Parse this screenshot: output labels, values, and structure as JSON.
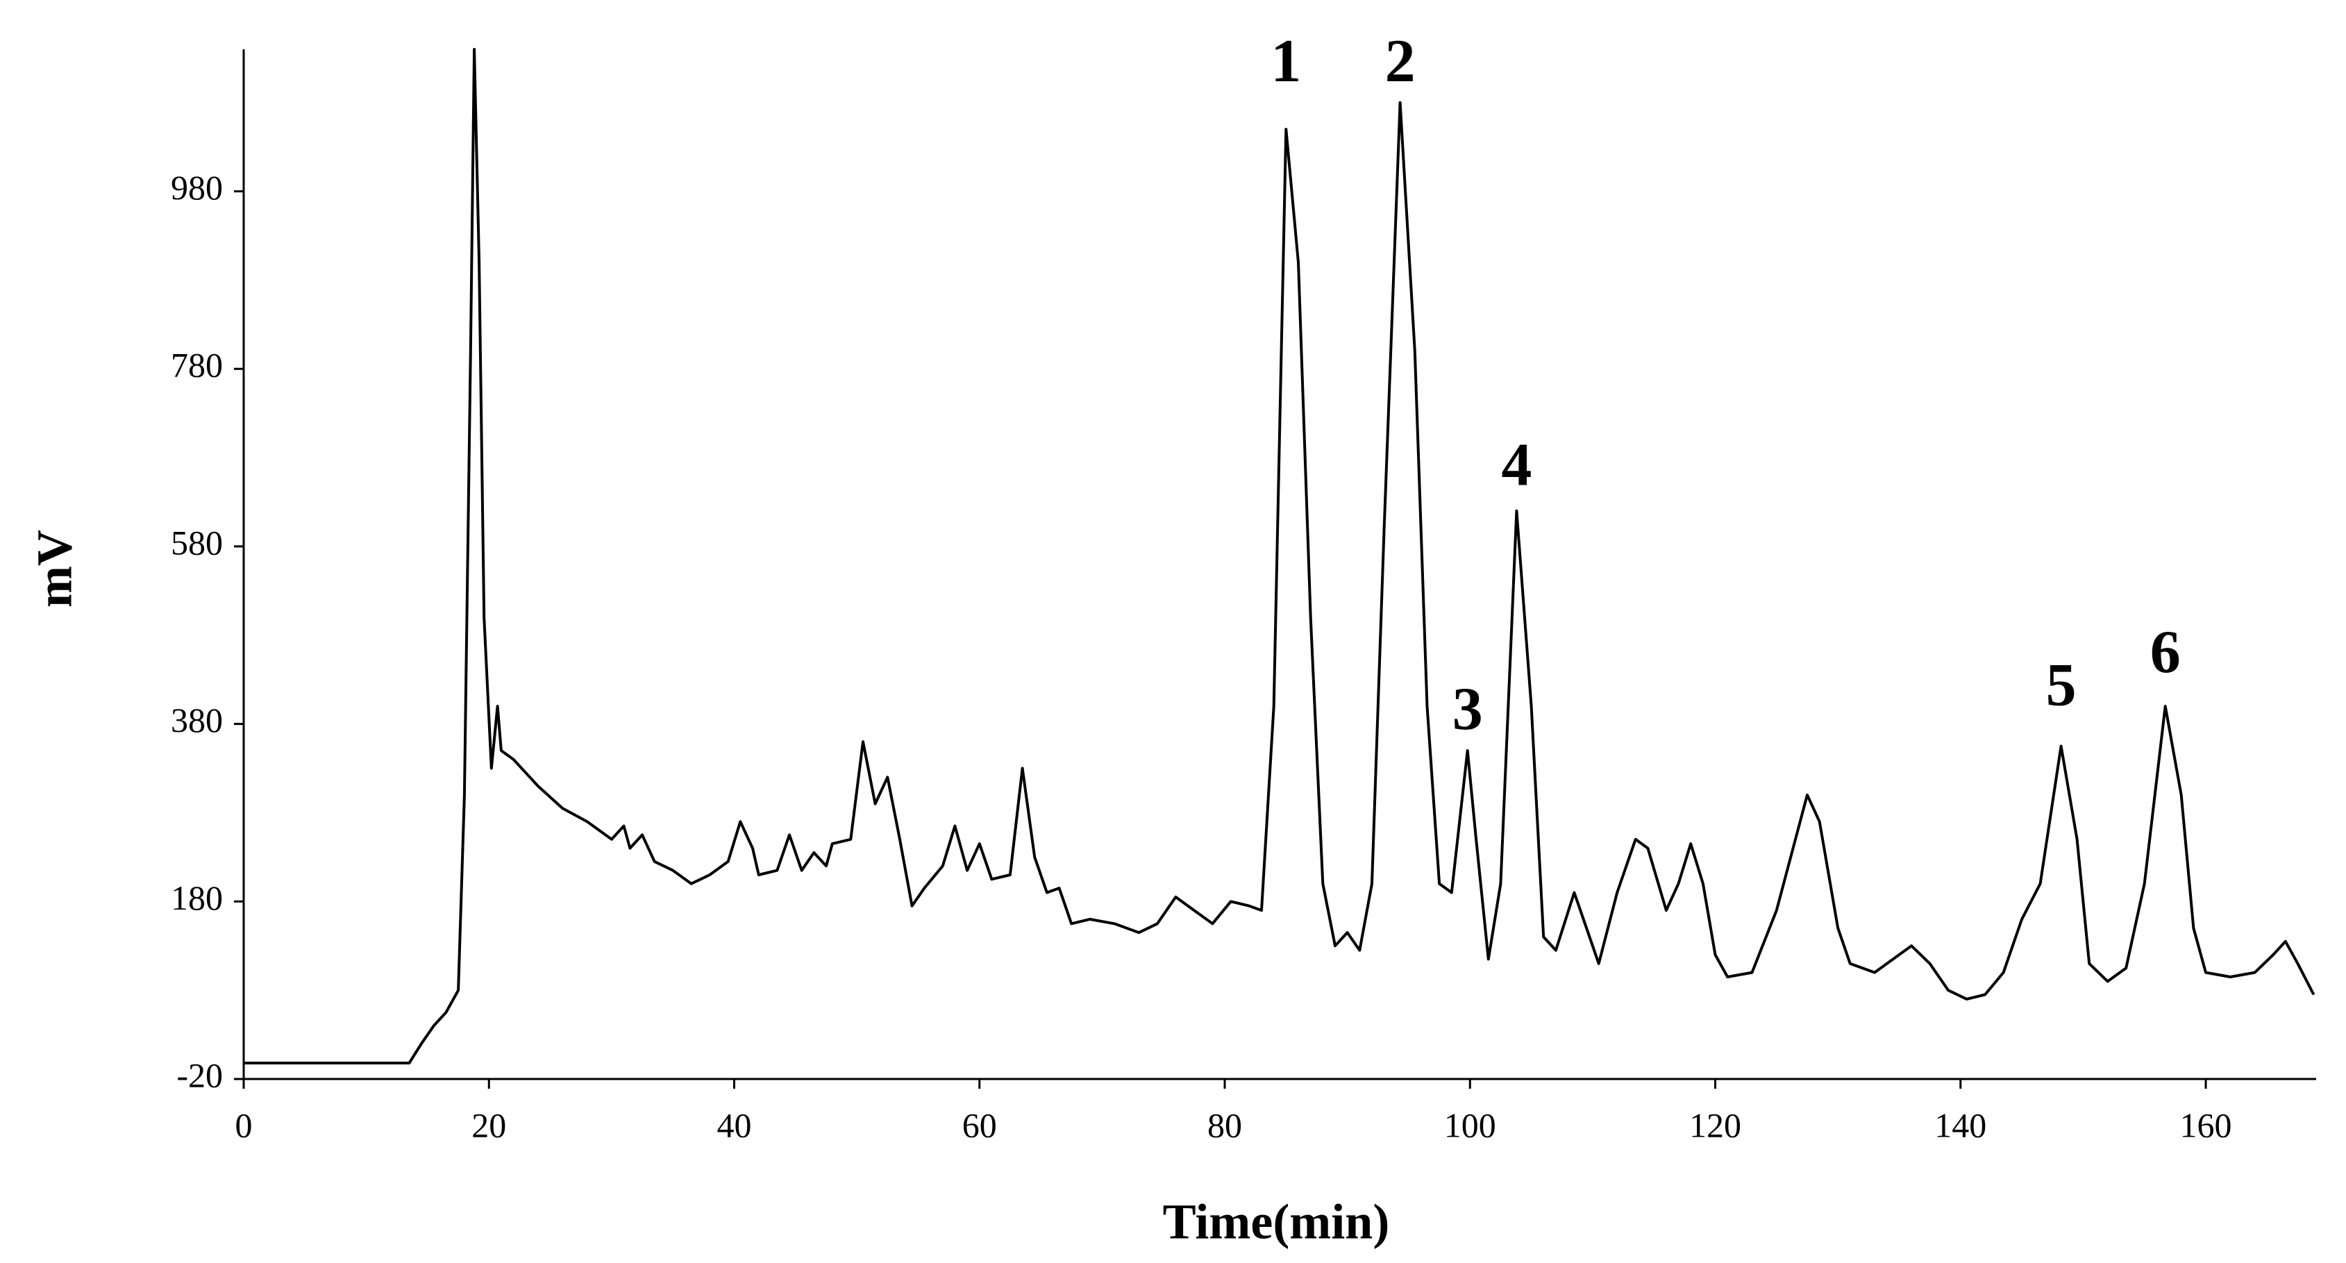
{
  "chart_data": {
    "type": "line",
    "x_label": "Time(min)",
    "y_label": "mV",
    "x": [
      0,
      13.5,
      14.5,
      15.5,
      16.5,
      17.5,
      18,
      18.5,
      18.8,
      19.2,
      19.6,
      20.2,
      20.7,
      21,
      22,
      24,
      26,
      28,
      30,
      31,
      31.5,
      32.5,
      33.5,
      35,
      36.5,
      38,
      39.5,
      40.5,
      41.5,
      42,
      43.5,
      44.5,
      45.5,
      46.5,
      47.5,
      48,
      49.5,
      50.5,
      51.5,
      52.5,
      53.5,
      54.5,
      55.5,
      57,
      58,
      59,
      60,
      61,
      62.5,
      63.5,
      64.5,
      65.5,
      66.5,
      67.5,
      69,
      71,
      73,
      74.5,
      76,
      77.5,
      79,
      80.5,
      82,
      83,
      84,
      85,
      86,
      87,
      88,
      89,
      90,
      91,
      92,
      93,
      94.3,
      95.5,
      96.5,
      97.5,
      98.5,
      99.8,
      100.5,
      101.5,
      102.5,
      103.8,
      105,
      106,
      107,
      108.5,
      109.5,
      110.5,
      112,
      113.5,
      114.5,
      116,
      117,
      118,
      119,
      120,
      121,
      123,
      125,
      127.5,
      128.5,
      130,
      131,
      133,
      134.5,
      136,
      137.5,
      139,
      140.5,
      142,
      143.5,
      145,
      146.5,
      148.2,
      149.5,
      150.5,
      152,
      153.5,
      155,
      156.7,
      158,
      159,
      160,
      162,
      164,
      165.5,
      166.5,
      167.5,
      168.8
    ],
    "values": [
      -2,
      -2,
      20,
      40,
      55,
      80,
      300,
      800,
      1140,
      900,
      500,
      330,
      400,
      350,
      340,
      310,
      285,
      270,
      250,
      265,
      240,
      255,
      225,
      215,
      200,
      210,
      225,
      270,
      240,
      210,
      215,
      255,
      215,
      235,
      220,
      245,
      250,
      360,
      290,
      320,
      250,
      175,
      195,
      220,
      265,
      215,
      245,
      205,
      210,
      330,
      230,
      190,
      195,
      155,
      160,
      155,
      145,
      155,
      185,
      170,
      155,
      180,
      175,
      170,
      400,
      1050,
      900,
      500,
      200,
      130,
      145,
      125,
      200,
      600,
      1080,
      800,
      400,
      200,
      190,
      350,
      250,
      115,
      200,
      620,
      400,
      140,
      125,
      190,
      150,
      110,
      190,
      250,
      240,
      170,
      200,
      245,
      200,
      120,
      95,
      100,
      170,
      300,
      270,
      150,
      110,
      100,
      115,
      130,
      110,
      80,
      70,
      75,
      100,
      160,
      200,
      355,
      250,
      110,
      90,
      105,
      200,
      400,
      300,
      150,
      100,
      95,
      100,
      120,
      135,
      110,
      75
    ],
    "color": "#000000",
    "xlim": [
      0,
      169
    ],
    "ylim": [
      -20,
      1140
    ],
    "xticks": [
      0,
      20,
      40,
      60,
      80,
      100,
      120,
      140,
      160
    ],
    "yticks": [
      -20,
      180,
      380,
      580,
      780,
      980
    ],
    "grid": false,
    "annotations": [
      {
        "text": "1",
        "x": 85,
        "y": 1120
      },
      {
        "text": "2",
        "x": 94.3,
        "y": 1120
      },
      {
        "text": "3",
        "x": 99.8,
        "y": 390
      },
      {
        "text": "4",
        "x": 103.8,
        "y": 665
      },
      {
        "text": "5",
        "x": 148.2,
        "y": 417
      },
      {
        "text": "6",
        "x": 156.7,
        "y": 454
      }
    ]
  }
}
